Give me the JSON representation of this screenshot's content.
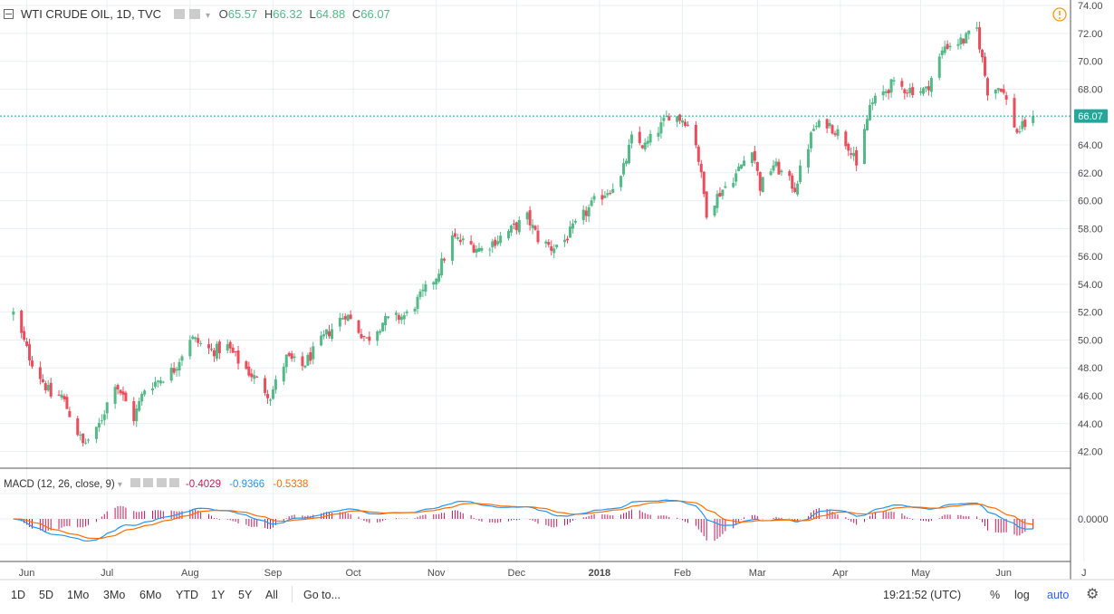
{
  "header": {
    "symbol": "WTI CRUDE OIL, 1D, TVC",
    "open_label": "O",
    "open": "65.57",
    "high_label": "H",
    "high": "66.32",
    "low_label": "L",
    "low": "64.88",
    "close_label": "C",
    "close": "66.07"
  },
  "macd": {
    "title": "MACD (12, 26, close, 9)",
    "hist_value": "-0.4029",
    "macd_value": "-0.9366",
    "signal_value": "-0.5338",
    "zero_label": "0.0000"
  },
  "price_line_label": "66.07",
  "bottom_bar": {
    "ranges": [
      "1D",
      "5D",
      "1Mo",
      "3Mo",
      "6Mo",
      "YTD",
      "1Y",
      "5Y",
      "All"
    ],
    "goto": "Go to...",
    "time": "19:21:52 (UTC)",
    "percent": "%",
    "log": "log",
    "auto": "auto"
  },
  "colors": {
    "up": "#53b987",
    "down": "#eb4d5c",
    "macd": "#2196f3",
    "signal": "#ff6d00",
    "histogram": "#c2185b",
    "price_line": "#26a69a",
    "auto": "#2962ff"
  },
  "chart_data": {
    "type": "candlestick",
    "y_axis_ticks": [
      42,
      44,
      46,
      48,
      50,
      52,
      54,
      56,
      58,
      60,
      62,
      64,
      66,
      68,
      70,
      72,
      74
    ],
    "ylim": [
      40.8,
      74.4
    ],
    "x_axis_labels": [
      "Jun",
      "Jul",
      "Aug",
      "Sep",
      "Oct",
      "Nov",
      "Dec",
      "2018",
      "Feb",
      "Mar",
      "Apr",
      "May",
      "Jun",
      "J"
    ],
    "last_close": 66.07,
    "close_path": [
      {
        "date": "2017-05-26",
        "close": 51.9
      },
      {
        "date": "2017-06-01",
        "close": 48.8
      },
      {
        "date": "2017-06-09",
        "close": 46.0
      },
      {
        "date": "2017-06-13",
        "close": 46.0
      },
      {
        "date": "2017-06-21",
        "close": 42.5
      },
      {
        "date": "2017-06-26",
        "close": 43.4
      },
      {
        "date": "2017-07-03",
        "close": 47.0
      },
      {
        "date": "2017-07-10",
        "close": 44.4
      },
      {
        "date": "2017-07-14",
        "close": 46.5
      },
      {
        "date": "2017-07-19",
        "close": 47.1
      },
      {
        "date": "2017-07-25",
        "close": 47.9
      },
      {
        "date": "2017-07-31",
        "close": 50.2
      },
      {
        "date": "2017-08-08",
        "close": 49.2
      },
      {
        "date": "2017-08-14",
        "close": 49.5
      },
      {
        "date": "2017-08-18",
        "close": 48.5
      },
      {
        "date": "2017-08-24",
        "close": 47.3
      },
      {
        "date": "2017-08-30",
        "close": 46.0
      },
      {
        "date": "2017-09-05",
        "close": 48.7
      },
      {
        "date": "2017-09-11",
        "close": 48.1
      },
      {
        "date": "2017-09-20",
        "close": 50.4
      },
      {
        "date": "2017-09-27",
        "close": 51.9
      },
      {
        "date": "2017-10-05",
        "close": 50.0
      },
      {
        "date": "2017-10-11",
        "close": 51.3
      },
      {
        "date": "2017-10-20",
        "close": 51.8
      },
      {
        "date": "2017-10-31",
        "close": 54.6
      },
      {
        "date": "2017-11-06",
        "close": 57.3
      },
      {
        "date": "2017-11-13",
        "close": 56.8
      },
      {
        "date": "2017-11-17",
        "close": 56.5
      },
      {
        "date": "2017-11-28",
        "close": 57.9
      },
      {
        "date": "2017-12-04",
        "close": 58.8
      },
      {
        "date": "2017-12-08",
        "close": 57.3
      },
      {
        "date": "2017-12-13",
        "close": 56.6
      },
      {
        "date": "2017-12-18",
        "close": 57.2
      },
      {
        "date": "2017-12-22",
        "close": 58.2
      },
      {
        "date": "2017-12-29",
        "close": 59.9
      },
      {
        "date": "2018-01-08",
        "close": 61.6
      },
      {
        "date": "2018-01-12",
        "close": 64.4
      },
      {
        "date": "2018-01-17",
        "close": 63.9
      },
      {
        "date": "2018-01-24",
        "close": 65.6
      },
      {
        "date": "2018-01-26",
        "close": 66.2
      },
      {
        "date": "2018-02-01",
        "close": 65.8
      },
      {
        "date": "2018-02-05",
        "close": 64.2
      },
      {
        "date": "2018-02-09",
        "close": 59.2
      },
      {
        "date": "2018-02-14",
        "close": 60.6
      },
      {
        "date": "2018-02-20",
        "close": 61.9
      },
      {
        "date": "2018-02-26",
        "close": 63.9
      },
      {
        "date": "2018-03-01",
        "close": 61.0
      },
      {
        "date": "2018-03-06",
        "close": 62.6
      },
      {
        "date": "2018-03-09",
        "close": 62.0
      },
      {
        "date": "2018-03-14",
        "close": 60.9
      },
      {
        "date": "2018-03-21",
        "close": 65.2
      },
      {
        "date": "2018-03-26",
        "close": 65.6
      },
      {
        "date": "2018-03-30",
        "close": 64.9
      },
      {
        "date": "2018-04-05",
        "close": 63.5
      },
      {
        "date": "2018-04-06",
        "close": 62.1
      },
      {
        "date": "2018-04-11",
        "close": 66.8
      },
      {
        "date": "2018-04-19",
        "close": 68.3
      },
      {
        "date": "2018-04-25",
        "close": 68.0
      },
      {
        "date": "2018-05-02",
        "close": 67.9
      },
      {
        "date": "2018-05-09",
        "close": 71.1
      },
      {
        "date": "2018-05-16",
        "close": 71.5
      },
      {
        "date": "2018-05-21",
        "close": 72.3
      },
      {
        "date": "2018-05-25",
        "close": 67.9
      },
      {
        "date": "2018-05-30",
        "close": 68.2
      },
      {
        "date": "2018-06-05",
        "close": 64.9
      },
      {
        "date": "2018-06-11",
        "close": 66.07
      }
    ]
  }
}
